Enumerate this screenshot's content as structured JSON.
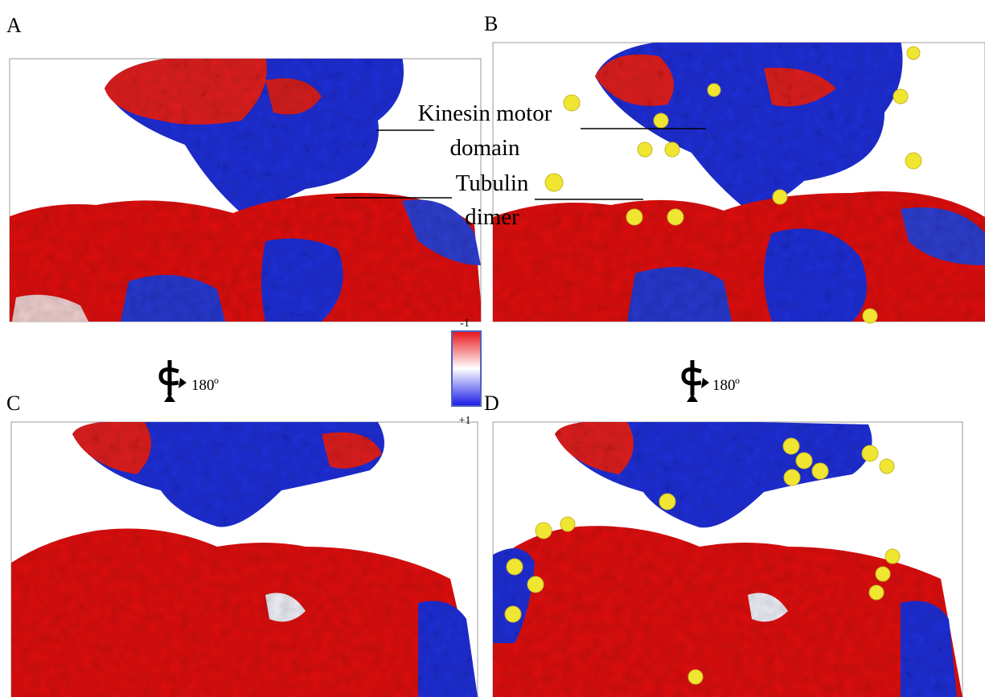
{
  "panels": [
    {
      "label": "A"
    },
    {
      "label": "B"
    },
    {
      "label": "C"
    },
    {
      "label": "D"
    }
  ],
  "annotations": {
    "kinesin": [
      "Kinesin motor",
      "domain"
    ],
    "tubulin": [
      "Tubulin",
      "dimer"
    ]
  },
  "rotation": {
    "angle": "180",
    "unit": "o"
  },
  "colorbar": {
    "top": "-1",
    "bottom": "+1"
  }
}
